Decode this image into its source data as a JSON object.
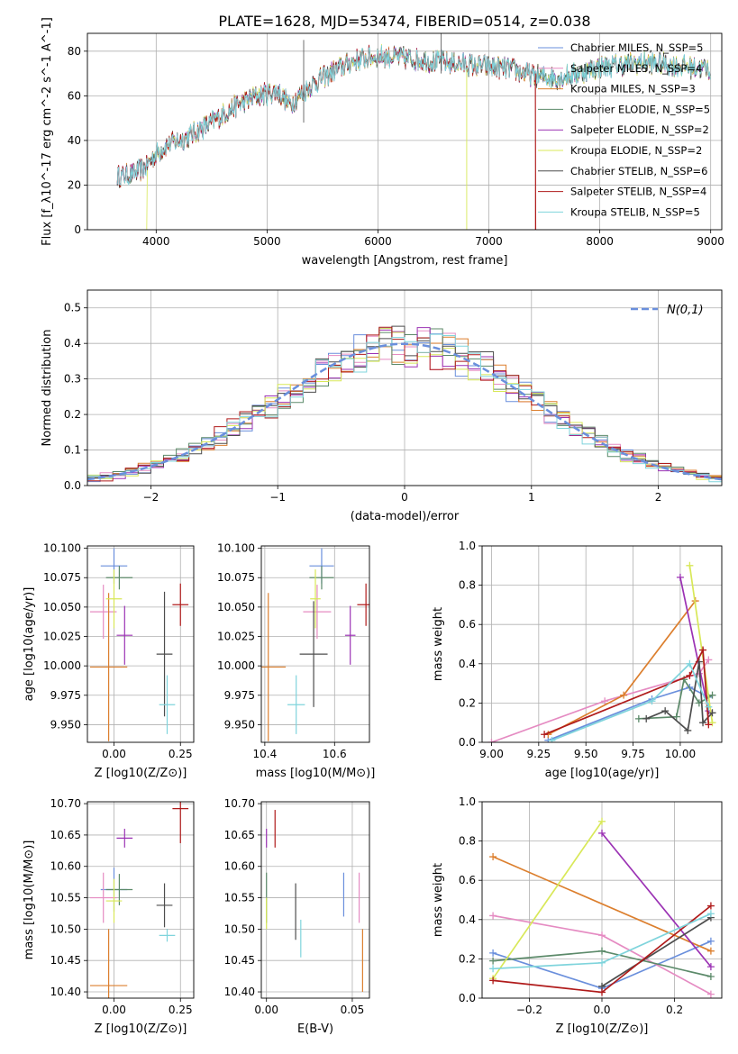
{
  "title": "PLATE=1628, MJD=53474, FIBERID=0514, z=0.038",
  "colors": {
    "chabrier_miles": "#6a8fdc",
    "salpeter_miles": "#e58bc2",
    "kroupa_miles": "#dc7f2e",
    "chabrier_elodie": "#5c8a6a",
    "salpeter_elodie": "#9b32b4",
    "kroupa_elodie": "#d8e858",
    "chabrier_stelib": "#4d4d4d",
    "salpeter_stelib": "#b01b1b",
    "kroupa_stelib": "#7fd4dc"
  },
  "chart_data": [
    {
      "type": "line",
      "name": "spectrum",
      "xlabel": "wavelength [Angstrom, rest frame]",
      "ylabel": "Flux [f_λ10^-17 erg cm^-2 s^-1 A^-1]",
      "xlim": [
        3380,
        9100
      ],
      "ylim": [
        0,
        88
      ],
      "xticks": [
        4000,
        5000,
        6000,
        7000,
        8000,
        9000
      ],
      "yticks": [
        0,
        20,
        40,
        60,
        80
      ],
      "legend": "top-right",
      "series": [
        {
          "name": "Chabrier MILES, N_SSP=5"
        },
        {
          "name": "Salpeter MILES, N_SSP=4"
        },
        {
          "name": "Kroupa MILES, N_SSP=3"
        },
        {
          "name": "Chabrier ELODIE, N_SSP=5"
        },
        {
          "name": "Salpeter ELODIE, N_SSP=2"
        },
        {
          "name": "Kroupa ELODIE, N_SSP=2"
        },
        {
          "name": "Chabrier STELIB, N_SSP=6"
        },
        {
          "name": "Salpeter STELIB, N_SSP=4"
        },
        {
          "name": "Kroupa STELIB, N_SSP=5"
        }
      ],
      "continuum": {
        "x": [
          3650,
          3800,
          3900,
          4000,
          4100,
          4300,
          4500,
          4700,
          4900,
          5100,
          5200,
          5400,
          5600,
          5800,
          6000,
          6200,
          6400,
          6600,
          6800,
          7000,
          7200,
          7400,
          7600,
          7800,
          8000,
          8200,
          8400,
          8600,
          8800,
          9000
        ],
        "y": [
          24,
          25,
          28,
          34,
          38,
          42,
          48,
          55,
          60,
          62,
          56,
          65,
          71,
          76,
          78,
          77,
          76,
          75,
          74,
          73,
          72,
          69,
          68,
          70,
          73,
          74,
          75,
          74,
          73,
          72
        ]
      }
    },
    {
      "type": "step",
      "name": "residual-histogram",
      "xlabel": "(data-model)/error",
      "ylabel": "Normed distribution",
      "xlim": [
        -2.5,
        2.5
      ],
      "ylim": [
        0,
        0.55
      ],
      "xticks": [
        -2,
        -1,
        0,
        1,
        2
      ],
      "yticks": [
        0.0,
        0.1,
        0.2,
        0.3,
        0.4,
        0.5
      ],
      "legend": "top-right",
      "gaussian": {
        "name": "N(0,1)",
        "mu": 0,
        "sigma": 1
      },
      "bin_width": 0.1
    },
    {
      "type": "errorbar",
      "name": "age-vs-Z",
      "xlabel": "Z [log10(Z/Z⊙)]",
      "ylabel": "age [log10(age/yr)]",
      "xlim": [
        -0.1,
        0.3
      ],
      "ylim": [
        9.935,
        10.102
      ],
      "xticks": [
        0.0,
        0.25
      ],
      "yticks": [
        9.95,
        9.975,
        10.0,
        10.025,
        10.05,
        10.075,
        10.1
      ],
      "points": [
        {
          "x": 0.0,
          "xerr": 0.05,
          "y": 10.085,
          "yerr": 0.015,
          "c": "chabrier_miles"
        },
        {
          "x": -0.04,
          "xerr": 0.05,
          "y": 10.046,
          "yerr": 0.023,
          "c": "salpeter_miles"
        },
        {
          "x": -0.02,
          "xerr": 0.07,
          "y": 9.999,
          "yerr": 0.063,
          "c": "kroupa_miles"
        },
        {
          "x": 0.02,
          "xerr": 0.05,
          "y": 10.075,
          "yerr": 0.01,
          "c": "chabrier_elodie"
        },
        {
          "x": 0.04,
          "xerr": 0.03,
          "y": 10.026,
          "yerr": 0.025,
          "c": "salpeter_elodie"
        },
        {
          "x": 0.0,
          "xerr": 0.03,
          "y": 10.057,
          "yerr": 0.025,
          "c": "kroupa_elodie"
        },
        {
          "x": 0.19,
          "xerr": 0.03,
          "y": 10.01,
          "yerr": 0.053,
          "c": "chabrier_stelib"
        },
        {
          "x": 0.25,
          "xerr": 0.03,
          "y": 10.052,
          "yerr": 0.018,
          "c": "salpeter_stelib"
        },
        {
          "x": 0.2,
          "xerr": 0.03,
          "y": 9.967,
          "yerr": 0.025,
          "c": "kroupa_stelib"
        }
      ]
    },
    {
      "type": "errorbar",
      "name": "age-vs-mass",
      "xlabel": "mass [log10(M/M⊙)]",
      "ylabel": "",
      "xlim": [
        10.39,
        10.7
      ],
      "ylim": [
        9.935,
        10.102
      ],
      "xticks": [
        10.4,
        10.6
      ],
      "yticks": [
        9.95,
        9.975,
        10.0,
        10.025,
        10.05,
        10.075,
        10.1
      ],
      "points": [
        {
          "x": 10.563,
          "xerr": 0.035,
          "y": 10.085,
          "yerr": 0.015,
          "c": "chabrier_miles"
        },
        {
          "x": 10.55,
          "xerr": 0.04,
          "y": 10.046,
          "yerr": 0.023,
          "c": "salpeter_miles"
        },
        {
          "x": 10.41,
          "xerr": 0.05,
          "y": 9.999,
          "yerr": 0.063,
          "c": "kroupa_miles"
        },
        {
          "x": 10.563,
          "xerr": 0.035,
          "y": 10.075,
          "yerr": 0.01,
          "c": "chabrier_elodie"
        },
        {
          "x": 10.645,
          "xerr": 0.015,
          "y": 10.026,
          "yerr": 0.025,
          "c": "salpeter_elodie"
        },
        {
          "x": 10.545,
          "xerr": 0.015,
          "y": 10.057,
          "yerr": 0.025,
          "c": "kroupa_elodie"
        },
        {
          "x": 10.54,
          "xerr": 0.04,
          "y": 10.01,
          "yerr": 0.045,
          "c": "chabrier_stelib"
        },
        {
          "x": 10.69,
          "xerr": 0.025,
          "y": 10.052,
          "yerr": 0.018,
          "c": "salpeter_stelib"
        },
        {
          "x": 10.49,
          "xerr": 0.025,
          "y": 9.967,
          "yerr": 0.025,
          "c": "kroupa_stelib"
        }
      ]
    },
    {
      "type": "line",
      "name": "mass-weight-vs-age",
      "xlabel": "age [log10(age/yr)]",
      "ylabel": "mass weight",
      "xlim": [
        8.95,
        10.22
      ],
      "ylim": [
        0,
        1
      ],
      "xticks": [
        9.0,
        9.25,
        9.5,
        9.75,
        10.0
      ],
      "yticks": [
        0.0,
        0.2,
        0.4,
        0.6,
        0.8,
        1.0
      ],
      "series": [
        {
          "c": "chabrier_miles",
          "x": [
            9.3,
            9.85,
            10.05,
            10.15
          ],
          "y": [
            0.01,
            0.22,
            0.28,
            0.23
          ]
        },
        {
          "c": "salpeter_miles",
          "x": [
            9.0,
            9.6,
            10.1,
            10.15
          ],
          "y": [
            0.0,
            0.21,
            0.35,
            0.42
          ]
        },
        {
          "c": "kroupa_miles",
          "x": [
            9.3,
            9.7,
            10.08
          ],
          "y": [
            0.04,
            0.24,
            0.72
          ]
        },
        {
          "c": "chabrier_elodie",
          "x": [
            9.78,
            9.98,
            10.02,
            10.1,
            10.17
          ],
          "y": [
            0.12,
            0.13,
            0.32,
            0.2,
            0.24
          ]
        },
        {
          "c": "salpeter_elodie",
          "x": [
            10.0,
            10.15
          ],
          "y": [
            0.84,
            0.16
          ]
        },
        {
          "c": "kroupa_elodie",
          "x": [
            10.05,
            10.17
          ],
          "y": [
            0.9,
            0.1
          ]
        },
        {
          "c": "chabrier_stelib",
          "x": [
            9.82,
            9.92,
            10.04,
            10.1,
            10.12,
            10.17
          ],
          "y": [
            0.12,
            0.16,
            0.06,
            0.41,
            0.1,
            0.15
          ]
        },
        {
          "c": "salpeter_stelib",
          "x": [
            9.28,
            10.05,
            10.12,
            10.15
          ],
          "y": [
            0.04,
            0.34,
            0.47,
            0.09
          ]
        },
        {
          "c": "kroupa_stelib",
          "x": [
            9.32,
            9.85,
            10.05,
            10.15
          ],
          "y": [
            0.01,
            0.21,
            0.4,
            0.18
          ]
        }
      ]
    },
    {
      "type": "errorbar",
      "name": "mass-vs-Z",
      "xlabel": "Z [log10(Z/Z⊙)]",
      "ylabel": "mass [log10(M/M⊙)]",
      "xlim": [
        -0.1,
        0.3
      ],
      "ylim": [
        10.39,
        10.703
      ],
      "xticks": [
        0.0,
        0.25
      ],
      "yticks": [
        10.4,
        10.45,
        10.5,
        10.55,
        10.6,
        10.65,
        10.7
      ],
      "points": [
        {
          "x": 0.0,
          "xerr": 0.05,
          "y": 10.563,
          "yerr": 0.035,
          "c": "chabrier_miles"
        },
        {
          "x": -0.04,
          "xerr": 0.05,
          "y": 10.55,
          "yerr": 0.04,
          "c": "salpeter_miles"
        },
        {
          "x": -0.02,
          "xerr": 0.07,
          "y": 10.41,
          "yerr": 0.09,
          "c": "kroupa_miles"
        },
        {
          "x": 0.02,
          "xerr": 0.05,
          "y": 10.563,
          "yerr": 0.025,
          "c": "chabrier_elodie"
        },
        {
          "x": 0.04,
          "xerr": 0.03,
          "y": 10.645,
          "yerr": 0.015,
          "c": "salpeter_elodie"
        },
        {
          "x": 0.0,
          "xerr": 0.03,
          "y": 10.545,
          "yerr": 0.035,
          "c": "kroupa_elodie"
        },
        {
          "x": 0.19,
          "xerr": 0.03,
          "y": 10.538,
          "yerr": 0.035,
          "c": "chabrier_stelib"
        },
        {
          "x": 0.25,
          "xerr": 0.03,
          "y": 10.692,
          "yerr": 0.055,
          "c": "salpeter_stelib"
        },
        {
          "x": 0.2,
          "xerr": 0.03,
          "y": 10.49,
          "yerr": 0.01,
          "c": "kroupa_stelib"
        }
      ]
    },
    {
      "type": "errorbar",
      "name": "mass-vs-ebv",
      "xlabel": "E(B-V)",
      "ylabel": "",
      "xlim": [
        -0.003,
        0.06
      ],
      "ylim": [
        10.39,
        10.703
      ],
      "xticks": [
        0.0,
        0.05
      ],
      "yticks": [
        10.4,
        10.45,
        10.5,
        10.55,
        10.6,
        10.65,
        10.7
      ],
      "points": [
        {
          "x": 0.045,
          "xerr": 0.0,
          "y": 10.555,
          "yerr": 0.035,
          "c": "chabrier_miles"
        },
        {
          "x": 0.054,
          "xerr": 0.0,
          "y": 10.55,
          "yerr": 0.04,
          "c": "salpeter_miles"
        },
        {
          "x": 0.056,
          "xerr": 0.0,
          "y": 10.45,
          "yerr": 0.05,
          "c": "kroupa_miles"
        },
        {
          "x": 0.0,
          "xerr": 0.0,
          "y": 10.55,
          "yerr": 0.04,
          "c": "chabrier_elodie"
        },
        {
          "x": 0.0,
          "xerr": 0.0,
          "y": 10.645,
          "yerr": 0.015,
          "c": "salpeter_elodie"
        },
        {
          "x": 0.0,
          "xerr": 0.0,
          "y": 10.525,
          "yerr": 0.025,
          "c": "kroupa_elodie"
        },
        {
          "x": 0.017,
          "xerr": 0.0,
          "y": 10.528,
          "yerr": 0.045,
          "c": "chabrier_stelib"
        },
        {
          "x": 0.005,
          "xerr": 0.0,
          "y": 10.66,
          "yerr": 0.03,
          "c": "salpeter_stelib"
        },
        {
          "x": 0.02,
          "xerr": 0.0,
          "y": 10.485,
          "yerr": 0.03,
          "c": "kroupa_stelib"
        }
      ]
    },
    {
      "type": "line",
      "name": "mass-weight-vs-Z",
      "xlabel": "Z [log10(Z/Z⊙)]",
      "ylabel": "mass weight",
      "xlim": [
        -0.33,
        0.33
      ],
      "ylim": [
        0,
        1
      ],
      "xticks": [
        -0.2,
        0.0,
        0.2
      ],
      "yticks": [
        0.0,
        0.2,
        0.4,
        0.6,
        0.8,
        1.0
      ],
      "series": [
        {
          "c": "chabrier_miles",
          "x": [
            -0.3,
            0.0,
            0.3
          ],
          "y": [
            0.23,
            0.05,
            0.29
          ]
        },
        {
          "c": "salpeter_miles",
          "x": [
            -0.3,
            0.0,
            0.3
          ],
          "y": [
            0.42,
            0.32,
            0.02
          ]
        },
        {
          "c": "kroupa_miles",
          "x": [
            -0.3,
            0.3
          ],
          "y": [
            0.72,
            0.24
          ]
        },
        {
          "c": "chabrier_elodie",
          "x": [
            -0.3,
            0.0,
            0.3
          ],
          "y": [
            0.19,
            0.24,
            0.11
          ]
        },
        {
          "c": "salpeter_elodie",
          "x": [
            0.0,
            0.3
          ],
          "y": [
            0.84,
            0.16
          ]
        },
        {
          "c": "kroupa_elodie",
          "x": [
            -0.3,
            0.0
          ],
          "y": [
            0.1,
            0.9
          ]
        },
        {
          "c": "chabrier_stelib",
          "x": [
            0.0,
            0.3
          ],
          "y": [
            0.06,
            0.41
          ]
        },
        {
          "c": "salpeter_stelib",
          "x": [
            -0.3,
            0.0,
            0.3
          ],
          "y": [
            0.09,
            0.03,
            0.47
          ]
        },
        {
          "c": "kroupa_stelib",
          "x": [
            -0.3,
            0.0,
            0.3
          ],
          "y": [
            0.15,
            0.18,
            0.43
          ]
        }
      ]
    }
  ]
}
